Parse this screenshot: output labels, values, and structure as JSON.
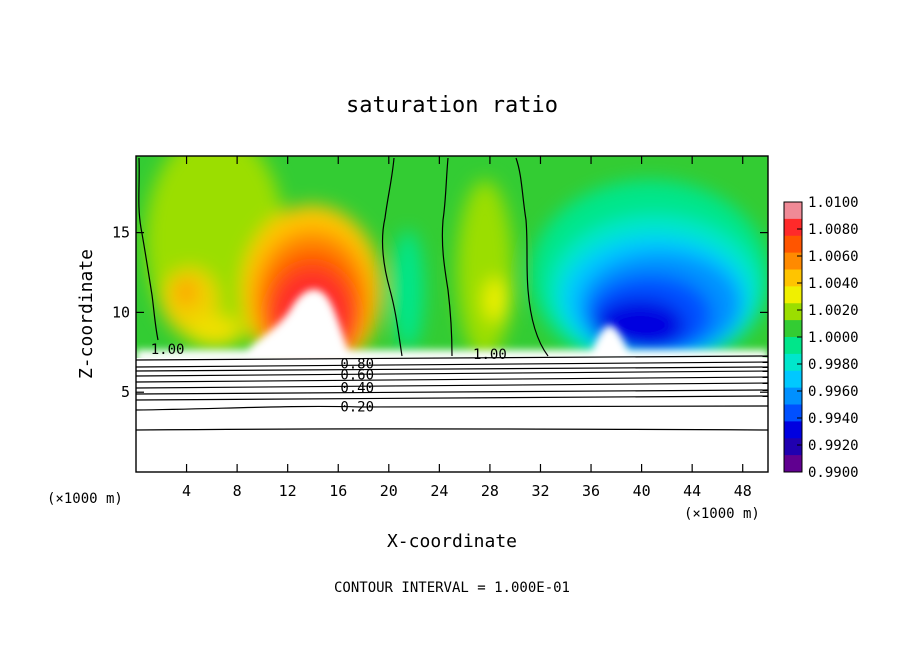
{
  "chart_data": {
    "type": "heatmap",
    "title": "saturation ratio",
    "xlabel": "X-coordinate",
    "ylabel": "Z-coordinate",
    "x_unit_left": "(×1000 m)",
    "x_unit_right": "(×1000 m)",
    "xlim": [
      0,
      50
    ],
    "ylim": [
      0,
      19.8
    ],
    "x_ticks": [
      4,
      8,
      12,
      16,
      20,
      24,
      28,
      32,
      36,
      40,
      44,
      48
    ],
    "y_ticks": [
      5,
      10,
      15
    ],
    "footer": "CONTOUR INTERVAL = 1.000E-01",
    "colorbar": {
      "ticks": [
        "1.0100",
        "1.0080",
        "1.0060",
        "1.0040",
        "1.0020",
        "1.0000",
        "0.9980",
        "0.9960",
        "0.9940",
        "0.9920",
        "0.9900"
      ],
      "range": [
        0.99,
        1.01
      ],
      "colors": [
        "#f08a96",
        "#ff2a2a",
        "#ff5500",
        "#ff8a00",
        "#ffc400",
        "#f0f000",
        "#9bde00",
        "#33cc33",
        "#00e68a",
        "#00e6cc",
        "#00c8ff",
        "#0090ff",
        "#0050ff",
        "#0000e0",
        "#2000b0",
        "#600090"
      ]
    },
    "contour_labels": [
      {
        "text": "1.00",
        "x": 2.5,
        "z": 7.7
      },
      {
        "text": "1.00",
        "x": 28,
        "z": 7.4
      },
      {
        "text": "0.80",
        "x": 17.5,
        "z": 6.8
      },
      {
        "text": "0.60",
        "x": 17.5,
        "z": 6.1
      },
      {
        "text": "0.40",
        "x": 17.5,
        "z": 5.3
      },
      {
        "text": "0.20",
        "x": 17.5,
        "z": 4.1
      }
    ],
    "contour_levels": [
      0.2,
      0.4,
      0.6,
      0.8,
      1.0
    ]
  }
}
